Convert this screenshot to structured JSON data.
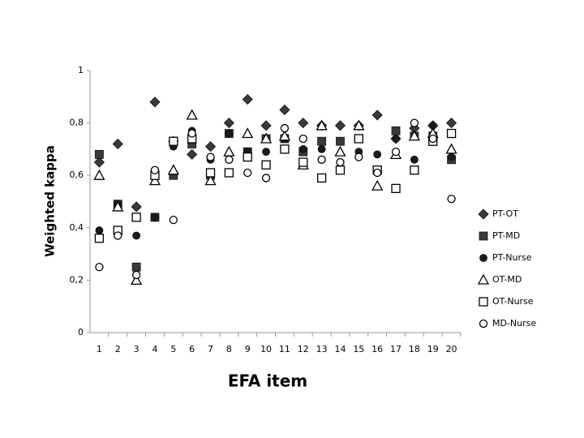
{
  "chart_data": {
    "type": "scatter",
    "xlabel": "EFA item",
    "ylabel": "Weighted kappa",
    "categories": [
      "1",
      "2",
      "3",
      "4",
      "5",
      "6",
      "7",
      "8",
      "9",
      "10",
      "11",
      "12",
      "13",
      "14",
      "15",
      "16",
      "17",
      "18",
      "19",
      "20"
    ],
    "ylim": [
      0,
      1
    ],
    "yticks": [
      0,
      {
        "value": 0.2,
        "label": "0,2"
      },
      {
        "value": 0.4,
        "label": "0,4"
      },
      {
        "value": 0.6,
        "label": "0,6"
      },
      {
        "value": 0.8,
        "label": "0,8"
      },
      1
    ],
    "grid": false,
    "legend": "right",
    "series": [
      {
        "name": "PT-OT",
        "marker": "diamond",
        "color": "#3a3a3a",
        "values": [
          0.65,
          0.72,
          0.48,
          0.88,
          0.73,
          0.68,
          0.71,
          0.8,
          0.89,
          0.79,
          0.85,
          0.8,
          0.79,
          0.79,
          0.79,
          0.83,
          0.74,
          0.78,
          0.79,
          0.8
        ]
      },
      {
        "name": "PT-MD",
        "marker": "square",
        "color": "#3a3a3a",
        "values": [
          0.68,
          0.49,
          0.25,
          0.44,
          0.6,
          0.72,
          0.6,
          0.76,
          0.69,
          0.74,
          0.74,
          0.69,
          0.73,
          0.73,
          0.74,
          0.62,
          0.77,
          0.75,
          0.75,
          0.66
        ]
      },
      {
        "name": "PT-Nurse",
        "marker": "circle",
        "color": "#1a1a1a",
        "values": [
          0.39,
          0.49,
          0.37,
          0.44,
          0.71,
          0.77,
          0.66,
          0.76,
          0.69,
          0.69,
          0.74,
          0.7,
          0.7,
          0.62,
          0.69,
          0.68,
          0.74,
          0.66,
          0.79,
          0.67
        ]
      },
      {
        "name": "OT-MD",
        "marker": "triangle-open",
        "color": "#000000",
        "values": [
          0.6,
          0.48,
          0.2,
          0.58,
          0.62,
          0.83,
          0.58,
          0.69,
          0.76,
          0.74,
          0.75,
          0.64,
          0.79,
          0.69,
          0.79,
          0.56,
          0.68,
          0.75,
          0.76,
          0.7
        ]
      },
      {
        "name": "OT-Nurse",
        "marker": "square-open",
        "color": "#000000",
        "values": [
          0.36,
          0.39,
          0.44,
          0.6,
          0.73,
          0.74,
          0.61,
          0.61,
          0.67,
          0.64,
          0.7,
          0.65,
          0.59,
          0.62,
          0.74,
          0.62,
          0.55,
          0.62,
          0.73,
          0.76
        ]
      },
      {
        "name": "MD-Nurse",
        "marker": "circle-open",
        "color": "#000000",
        "values": [
          0.25,
          0.37,
          0.22,
          0.62,
          0.43,
          0.76,
          0.67,
          0.66,
          0.61,
          0.59,
          0.78,
          0.74,
          0.66,
          0.65,
          0.67,
          0.61,
          0.69,
          0.8,
          0.74,
          0.51
        ]
      }
    ]
  }
}
